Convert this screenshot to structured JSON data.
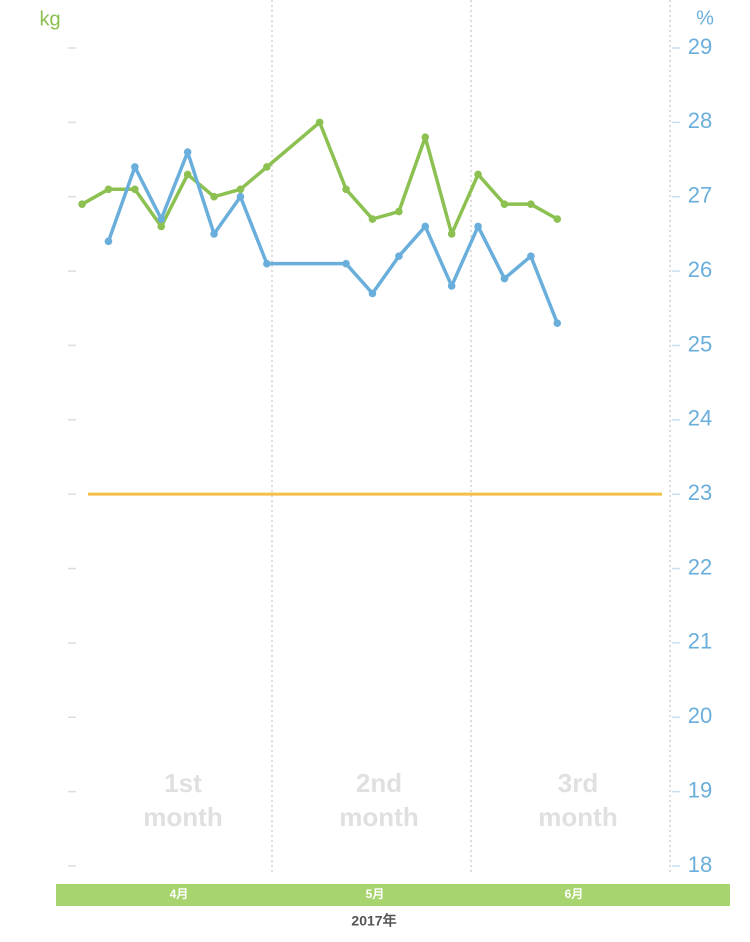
{
  "chart_data": {
    "type": "line",
    "y_label": "kg",
    "y2_label": "%",
    "xlim": [
      -0.76,
      22.27
    ],
    "y2lim": [
      18,
      29
    ],
    "y2ticks": [
      18,
      19,
      20,
      21,
      22,
      23,
      24,
      25,
      26,
      27,
      28,
      29
    ],
    "series": [
      {
        "color": "#8cc152",
        "axis": "y2",
        "x": [
          0,
          1,
          2,
          3,
          4,
          5,
          6,
          7,
          9,
          10,
          11,
          12,
          13,
          14,
          15,
          16,
          17,
          18
        ],
        "values": [
          26.9,
          27.1,
          27.1,
          26.6,
          27.3,
          27.0,
          27.1,
          27.4,
          28.0,
          27.1,
          26.7,
          26.8,
          27.8,
          26.5,
          27.3,
          26.9,
          26.9,
          26.7
        ]
      },
      {
        "color": "#6aaedb",
        "axis": "y2",
        "x": [
          1,
          2,
          3,
          4,
          5,
          6,
          7,
          10,
          11,
          12,
          13,
          14,
          15,
          16,
          17,
          18
        ],
        "values": [
          26.4,
          27.4,
          26.7,
          27.6,
          26.5,
          27.0,
          26.1,
          26.1,
          25.7,
          26.2,
          26.6,
          25.8,
          26.6,
          25.9,
          26.2,
          25.3
        ]
      }
    ],
    "target_line": {
      "value": 23,
      "color": "#f5c04a"
    },
    "annotations": [
      "1st\nmonth",
      "2nd\nmonth",
      "3rd\nmonth"
    ],
    "month_labels": [
      "4月",
      "5月",
      "6月"
    ],
    "year_label": "2017年"
  }
}
